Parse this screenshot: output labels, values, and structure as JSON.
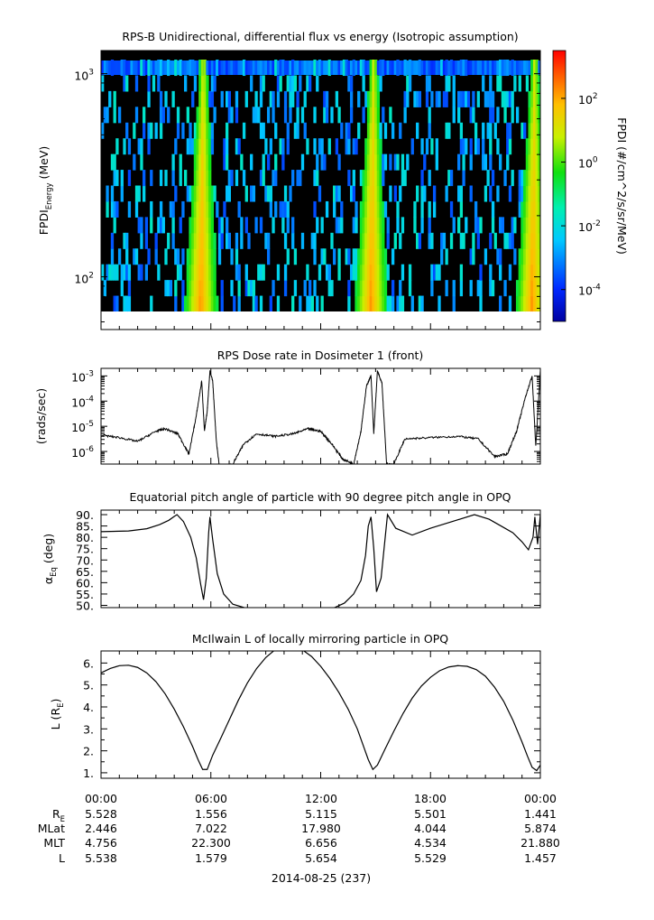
{
  "colors": {
    "line": "#000000",
    "background": "#ffffff"
  },
  "chart_data": [
    {
      "type": "heatmap",
      "title": "RPS-B  Unidirectional, differential flux vs energy (Isotropic assumption)",
      "ylabel_main": "FPDI",
      "ylabel_sub": "Energy",
      "ylabel_unit": "(MeV)",
      "yscale": "log",
      "ylim": [
        55,
        1300
      ],
      "yticks": [
        {
          "v": 100,
          "base": "10",
          "exp": "2"
        },
        {
          "v": 1000,
          "base": "10",
          "exp": "3"
        }
      ],
      "colorbar": {
        "label": "FPDI (#/cm^2/s/sr/MeV)",
        "scale": "log",
        "range_exp": [
          -5,
          3.5
        ],
        "ticks": [
          {
            "exp": "2",
            "base": "10"
          },
          {
            "exp": "0",
            "base": "10"
          },
          {
            "exp": "-2",
            "base": "10"
          },
          {
            "exp": "-4",
            "base": "10"
          }
        ]
      },
      "bright_bands_hours": [
        5.6,
        14.9,
        23.7
      ],
      "energy_bins": 16,
      "time_range_hours": [
        0,
        24
      ]
    },
    {
      "type": "line",
      "title": "RPS  Dose rate in Dosimeter 1 (front)",
      "ylabel": "(rads/sec)",
      "yscale": "log",
      "ylim_exp": [
        -6.5,
        -2.7
      ],
      "yticks": [
        {
          "exp": "-3",
          "base": "10"
        },
        {
          "exp": "-4",
          "base": "10"
        },
        {
          "exp": "-5",
          "base": "10"
        },
        {
          "exp": "-6",
          "base": "10"
        }
      ],
      "x_hours": [
        0,
        1,
        2,
        3,
        3.5,
        4.2,
        4.8,
        5.2,
        5.5,
        5.65,
        5.8,
        5.95,
        6.1,
        6.3,
        6.5,
        7.2,
        7.8,
        8.5,
        9.5,
        10.5,
        11.3,
        12,
        12.6,
        13.2,
        13.8,
        14.2,
        14.5,
        14.75,
        14.9,
        15.1,
        15.35,
        15.6,
        16,
        16.6,
        18,
        19.5,
        20.6,
        21.5,
        22.2,
        22.7,
        23.2,
        23.55,
        23.75,
        24
      ],
      "y_log10": [
        -5.35,
        -5.45,
        -5.6,
        -5.2,
        -5.1,
        -5.3,
        -6.1,
        -4.6,
        -3.2,
        -5.2,
        -4.4,
        -2.8,
        -3.2,
        -5.6,
        -6.8,
        -6.5,
        -5.7,
        -5.3,
        -5.4,
        -5.3,
        -5.1,
        -5.2,
        -5.7,
        -6.3,
        -6.5,
        -5.2,
        -3.4,
        -3.0,
        -5.3,
        -2.8,
        -3.3,
        -6.5,
        -6.5,
        -5.5,
        -5.45,
        -5.4,
        -5.5,
        -6.2,
        -6.1,
        -5.2,
        -3.8,
        -3.0,
        -5.8,
        -2.8
      ]
    },
    {
      "type": "line",
      "title": "Equatorial pitch angle of particle with 90 degree pitch angle in OPQ",
      "ylabel_main": "α",
      "ylabel_sub": "Eq",
      "ylabel_unit": "(deg)",
      "ylim": [
        49,
        92
      ],
      "yticks": [
        90,
        85,
        80,
        75,
        70,
        65,
        60,
        55,
        50
      ],
      "ytick_labels": [
        "90.",
        "85.",
        "80.",
        "75.",
        "70.",
        "65.",
        "60.",
        "55.",
        "50."
      ],
      "x_hours": [
        0,
        1.5,
        2.5,
        3.2,
        3.7,
        4.0,
        4.15,
        4.5,
        4.9,
        5.2,
        5.45,
        5.6,
        5.75,
        5.88,
        5.95,
        6.1,
        6.35,
        6.7,
        7.2,
        7.9,
        12.7,
        13.3,
        13.8,
        14.2,
        14.45,
        14.6,
        14.75,
        14.9,
        15.05,
        15.3,
        15.65,
        16.1,
        17,
        18,
        19.4,
        20.4,
        21.2,
        21.85,
        22.5,
        23.0,
        23.35,
        23.6,
        23.7,
        23.85,
        24
      ],
      "y": [
        82.5,
        82.8,
        83.8,
        85.6,
        87.5,
        89.2,
        90.0,
        87,
        80,
        71,
        59,
        52.5,
        62,
        82,
        89,
        79,
        64,
        55,
        50.5,
        48.8,
        48.8,
        51,
        55,
        61,
        72,
        85,
        89,
        75,
        56,
        62,
        90,
        84,
        81,
        84,
        87.5,
        90,
        88,
        85,
        82,
        78,
        74.5,
        80,
        89,
        77,
        90
      ]
    },
    {
      "type": "line",
      "title": "McIlwain L of locally mirroring particle in OPQ",
      "ylabel_main": "L (R",
      "ylabel_sub": "E",
      "ylabel_close": ")",
      "ylim": [
        0.75,
        6.55
      ],
      "yticks": [
        1,
        2,
        3,
        4,
        5,
        6
      ],
      "ytick_labels": [
        "1.",
        "2.",
        "3.",
        "4.",
        "5.",
        "6."
      ],
      "x_hours": [
        0,
        0.5,
        1,
        1.5,
        2,
        2.5,
        3,
        3.5,
        4,
        4.5,
        5,
        5.3,
        5.55,
        5.8,
        6.1,
        6.5,
        7,
        7.5,
        8,
        8.5,
        9,
        9.5,
        10,
        10.5,
        11,
        11.5,
        12,
        12.5,
        13,
        13.5,
        14,
        14.3,
        14.6,
        14.85,
        15.1,
        15.5,
        16,
        16.5,
        17,
        17.5,
        18,
        18.5,
        19,
        19.5,
        20,
        20.5,
        21,
        21.5,
        22,
        22.5,
        23,
        23.3,
        23.55,
        23.8,
        24
      ],
      "y": [
        5.55,
        5.75,
        5.88,
        5.9,
        5.8,
        5.55,
        5.15,
        4.6,
        3.9,
        3.1,
        2.2,
        1.6,
        1.15,
        1.15,
        1.8,
        2.5,
        3.4,
        4.3,
        5.1,
        5.75,
        6.25,
        6.6,
        6.8,
        6.8,
        6.6,
        6.3,
        5.85,
        5.3,
        4.65,
        3.9,
        3.0,
        2.3,
        1.6,
        1.15,
        1.35,
        2.05,
        2.9,
        3.7,
        4.4,
        4.95,
        5.35,
        5.65,
        5.82,
        5.88,
        5.85,
        5.7,
        5.4,
        4.9,
        4.25,
        3.4,
        2.4,
        1.75,
        1.25,
        1.1,
        1.35
      ]
    }
  ],
  "x_axis": {
    "tick_labels": [
      "00:00",
      "06:00",
      "12:00",
      "18:00",
      "00:00"
    ],
    "date_label": "2014-08-25 (237)"
  },
  "ephemeris": {
    "rows": [
      {
        "label_main": "R",
        "label_sub": "E",
        "values": [
          "5.528",
          "1.556",
          "5.115",
          "5.501",
          "1.441"
        ]
      },
      {
        "label_main": "MLat",
        "label_sub": "",
        "values": [
          "2.446",
          "7.022",
          "17.980",
          "4.044",
          "5.874"
        ]
      },
      {
        "label_main": "MLT",
        "label_sub": "",
        "values": [
          "4.756",
          "22.300",
          "6.656",
          "4.534",
          "21.880"
        ]
      },
      {
        "label_main": "L",
        "label_sub": "",
        "values": [
          "5.538",
          "1.579",
          "5.654",
          "5.529",
          "1.457"
        ]
      }
    ]
  }
}
